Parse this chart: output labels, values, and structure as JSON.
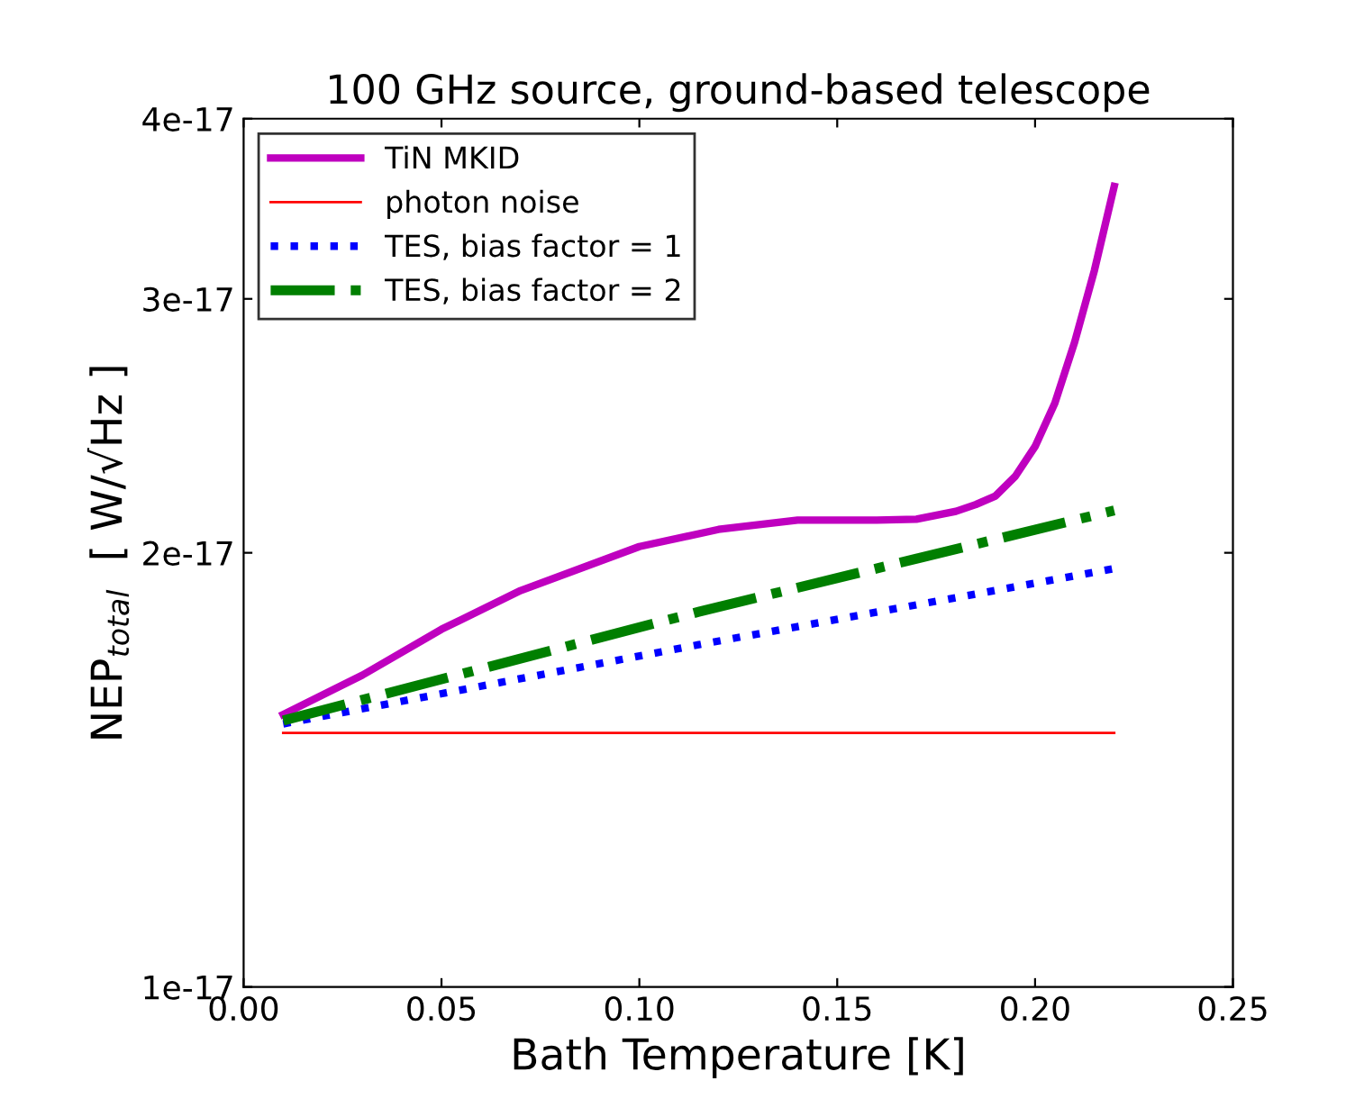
{
  "chart_data": {
    "type": "line",
    "title": "100 GHz source, ground-based telescope",
    "xlabel": "Bath Temperature [K]",
    "ylabel": "NEP$_{total}$  [ W/√Hz ]",
    "series": [
      {
        "name": "TiN MKID",
        "color": "#bf00bf",
        "line_style": "solid",
        "x": [
          0.01,
          0.03,
          0.05,
          0.07,
          0.1,
          0.12,
          0.14,
          0.16,
          0.17,
          0.18,
          0.185,
          0.19,
          0.195,
          0.2,
          0.205,
          0.21,
          0.215,
          0.22
        ],
        "values": [
          1.545e-17,
          1.645e-17,
          1.77e-17,
          1.883e-17,
          2.02e-17,
          2.076e-17,
          2.107e-17,
          2.107e-17,
          2.11e-17,
          2.137e-17,
          2.16e-17,
          2.19e-17,
          2.26e-17,
          2.37e-17,
          2.54e-17,
          2.8e-17,
          3.14e-17,
          3.59e-17
        ]
      },
      {
        "name": "photon noise",
        "color": "#ff0000",
        "line_style": "solid",
        "x": [
          0.01,
          0.22
        ],
        "values": [
          1.5e-17,
          1.5e-17
        ]
      },
      {
        "name": "TES, bias factor = 1",
        "color": "#0000ff",
        "line_style": "dotted",
        "x": [
          0.01,
          0.115,
          0.22
        ],
        "values": [
          1.522e-17,
          1.727e-17,
          1.95e-17
        ]
      },
      {
        "name": "TES, bias factor = 2",
        "color": "#007f00",
        "line_style": "dashdot",
        "x": [
          0.01,
          0.115,
          0.22
        ],
        "values": [
          1.53e-17,
          1.82e-17,
          2.14e-17
        ]
      }
    ],
    "log": "y",
    "xlim": [
      0,
      0.25
    ],
    "xticks": [
      {
        "value": 0,
        "label": "0.00"
      },
      {
        "value": 0.05,
        "label": "0.05"
      },
      {
        "value": 0.1,
        "label": "0.10"
      },
      {
        "value": 0.15,
        "label": "0.15"
      },
      {
        "value": 0.2,
        "label": "0.20"
      },
      {
        "value": 0.25,
        "label": "0.25"
      }
    ],
    "ylim": [
      1e-17,
      4e-17
    ],
    "yticks": [
      {
        "value": 1e-17,
        "label": "1e-17"
      },
      {
        "value": 2e-17,
        "label": "2e-17"
      },
      {
        "value": 3e-17,
        "label": "3e-17"
      },
      {
        "value": 4e-17,
        "label": "4e-17"
      }
    ],
    "legend": "top left",
    "grid": false
  }
}
